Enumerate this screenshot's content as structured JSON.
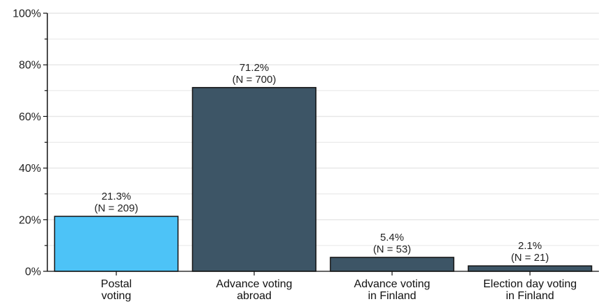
{
  "chart_data": {
    "type": "bar",
    "title": "",
    "xlabel": "",
    "ylabel": "",
    "ylim": [
      0,
      100
    ],
    "y_ticks": [
      0,
      20,
      40,
      60,
      80,
      100
    ],
    "y_tick_labels": [
      "0%",
      "20%",
      "40%",
      "60%",
      "80%",
      "100%"
    ],
    "grid": true,
    "legend": "none",
    "categories": [
      [
        "Postal",
        "voting"
      ],
      [
        "Advance voting",
        "abroad"
      ],
      [
        "Advance voting",
        "in Finland"
      ],
      [
        "Election day voting",
        "in Finland"
      ]
    ],
    "values": [
      21.3,
      71.2,
      5.4,
      2.1
    ],
    "value_labels": [
      "21.3%",
      "71.2%",
      "5.4%",
      "2.1%"
    ],
    "n_labels": [
      "(N = 209)",
      "(N = 700)",
      "(N = 53)",
      "(N = 21)"
    ],
    "colors": [
      "#4dc3f7",
      "#3d5566",
      "#3d5566",
      "#3d5566"
    ],
    "bar_stroke": "#111111",
    "grid_color": "#e6e6e6"
  }
}
